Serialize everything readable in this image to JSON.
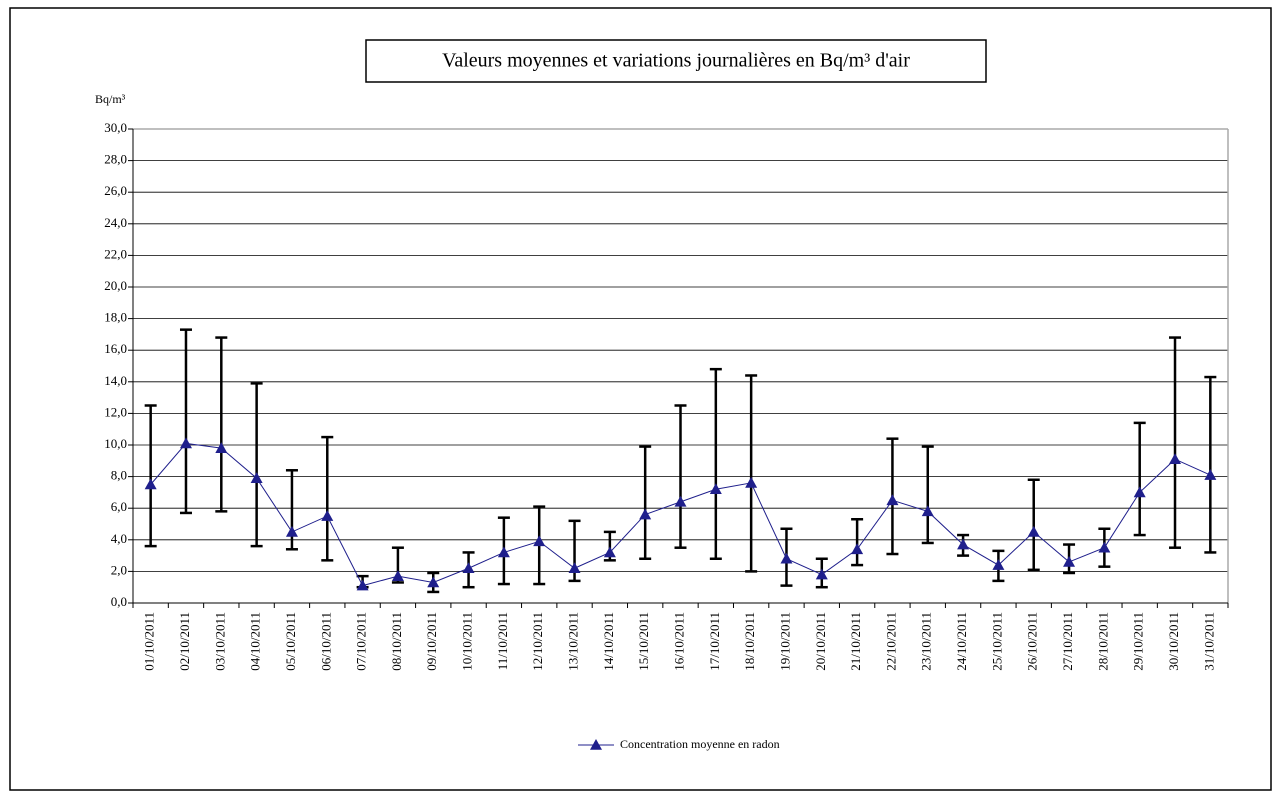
{
  "chart_data": {
    "type": "line",
    "title": "Valeurs moyennes et variations journalières en Bq/m³ d'air",
    "y_label": "Bq/m³",
    "categories": [
      "01/10/2011",
      "02/10/2011",
      "03/10/2011",
      "04/10/2011",
      "05/10/2011",
      "06/10/2011",
      "07/10/2011",
      "08/10/2011",
      "09/10/2011",
      "10/10/2011",
      "11/10/2011",
      "12/10/2011",
      "13/10/2011",
      "14/10/2011",
      "15/10/2011",
      "16/10/2011",
      "17/10/2011",
      "18/10/2011",
      "19/10/2011",
      "20/10/2011",
      "21/10/2011",
      "22/10/2011",
      "23/10/2011",
      "24/10/2011",
      "25/10/2011",
      "26/10/2011",
      "27/10/2011",
      "28/10/2011",
      "29/10/2011",
      "30/10/2011",
      "31/10/2011"
    ],
    "series": [
      {
        "name": "Concentration moyenne en radon",
        "color": "#1f1f8c",
        "values": [
          7.5,
          10.1,
          9.8,
          7.9,
          4.5,
          5.5,
          1.1,
          1.7,
          1.3,
          2.2,
          3.2,
          3.9,
          2.2,
          3.2,
          5.6,
          6.4,
          7.2,
          7.6,
          2.8,
          1.8,
          3.4,
          6.5,
          5.8,
          3.7,
          2.4,
          4.5,
          2.6,
          3.5,
          7.0,
          9.1,
          8.1
        ],
        "high": [
          12.5,
          17.3,
          16.8,
          13.9,
          8.4,
          10.5,
          1.7,
          3.5,
          1.9,
          3.2,
          5.4,
          6.1,
          5.2,
          4.5,
          9.9,
          12.5,
          14.8,
          14.4,
          4.7,
          2.8,
          5.3,
          10.4,
          9.9,
          4.3,
          3.3,
          7.8,
          3.7,
          4.7,
          11.4,
          16.8,
          14.3
        ],
        "low": [
          3.6,
          5.7,
          5.8,
          3.6,
          3.4,
          2.7,
          1.0,
          1.3,
          0.7,
          1.0,
          1.2,
          1.2,
          1.4,
          2.7,
          2.8,
          3.5,
          2.8,
          2.0,
          1.1,
          1.0,
          2.4,
          3.1,
          3.8,
          3.0,
          1.4,
          2.1,
          1.9,
          2.3,
          4.3,
          3.5,
          3.2
        ],
        "error_color": "#000000"
      }
    ],
    "ylim": [
      0,
      30
    ],
    "yticks": [
      {
        "value": 0,
        "label": "0,0"
      },
      {
        "value": 2,
        "label": "2,0"
      },
      {
        "value": 4,
        "label": "4,0"
      },
      {
        "value": 6,
        "label": "6,0"
      },
      {
        "value": 8,
        "label": "8,0"
      },
      {
        "value": 10,
        "label": "10,0"
      },
      {
        "value": 12,
        "label": "12,0"
      },
      {
        "value": 14,
        "label": "14,0"
      },
      {
        "value": 16,
        "label": "16,0"
      },
      {
        "value": 18,
        "label": "18,0"
      },
      {
        "value": 20,
        "label": "20,0"
      },
      {
        "value": 22,
        "label": "22,0"
      },
      {
        "value": 24,
        "label": "24,0"
      },
      {
        "value": 26,
        "label": "26,0"
      },
      {
        "value": 28,
        "label": "28,0"
      },
      {
        "value": 30,
        "label": "30,0"
      }
    ],
    "grid": true,
    "legend": "bottom"
  }
}
